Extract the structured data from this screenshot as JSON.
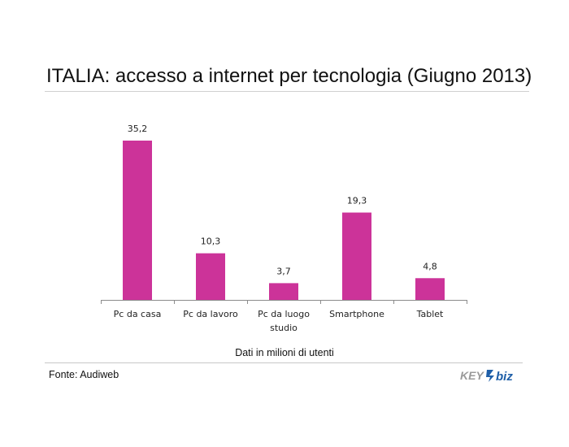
{
  "title": "ITALIA: accesso a internet per tecnologia (Giugno 2013)",
  "note": "Dati in milioni di utenti",
  "source": "Fonte: Audiweb",
  "logo": {
    "text_left": "KEY",
    "text_right": "biz"
  },
  "colors": {
    "bar": "#cc3399",
    "axis": "#8c8c8c",
    "logo_blue": "#1f5fa8",
    "logo_grey": "#9a9a9a"
  },
  "chart_data": {
    "type": "bar",
    "title": "ITALIA: accesso a internet per tecnologia (Giugno 2013)",
    "categories": [
      [
        "Pc da casa"
      ],
      [
        "Pc da lavoro"
      ],
      [
        "Pc da luogo",
        "studio"
      ],
      [
        "Smartphone"
      ],
      [
        "Tablet"
      ]
    ],
    "values": [
      35.2,
      10.3,
      3.7,
      19.3,
      4.8
    ],
    "value_labels": [
      "35,2",
      "10,3",
      "3,7",
      "19,3",
      "4,8"
    ],
    "xlabel": "",
    "ylabel": "",
    "ylim": [
      0,
      35.2
    ],
    "grid": false,
    "legend": "none"
  }
}
